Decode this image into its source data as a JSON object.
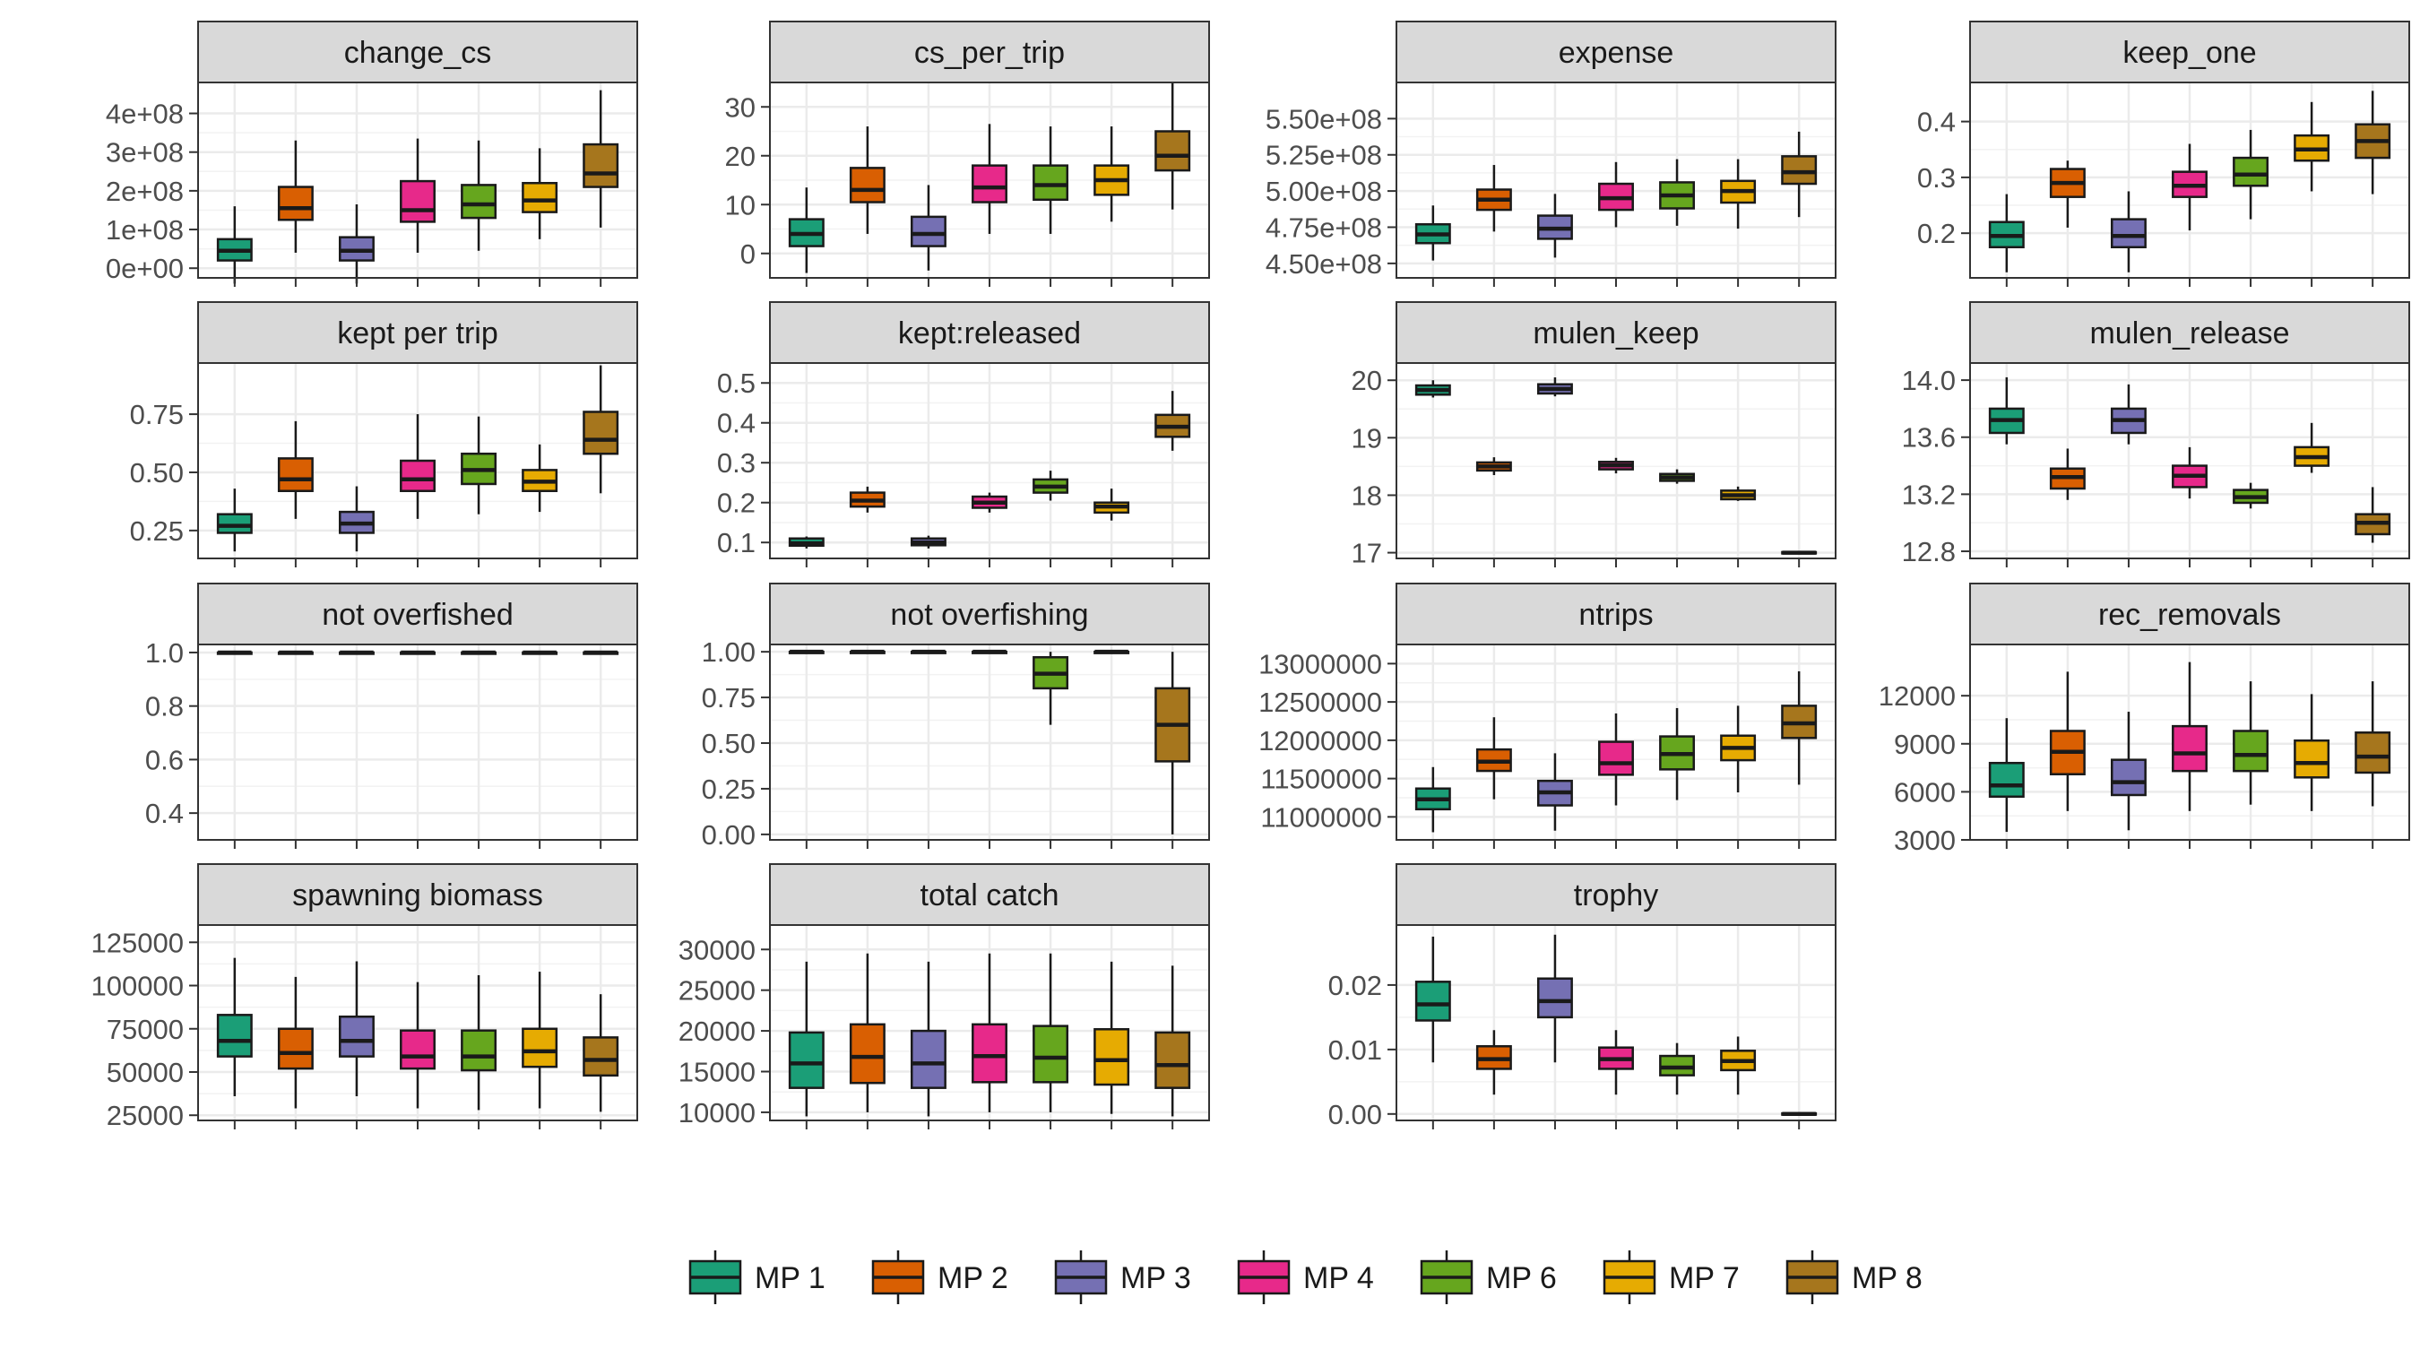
{
  "chart_data": {
    "type": "boxplot",
    "layout": "faceted grid, 4 columns, free y scales",
    "grid": true,
    "legend_position": "bottom",
    "legend": [
      {
        "label": "MP 1",
        "color": "#1b9e77"
      },
      {
        "label": "MP 2",
        "color": "#d95f02"
      },
      {
        "label": "MP 3",
        "color": "#7570b3"
      },
      {
        "label": "MP 4",
        "color": "#e7298a"
      },
      {
        "label": "MP 6",
        "color": "#66a61e"
      },
      {
        "label": "MP 7",
        "color": "#e6ab02"
      },
      {
        "label": "MP 8",
        "color": "#a6761d"
      }
    ],
    "series_order": [
      "MP 1",
      "MP 2",
      "MP 3",
      "MP 4",
      "MP 6",
      "MP 7",
      "MP 8"
    ],
    "box_fields": [
      "ymin",
      "q1",
      "median",
      "q3",
      "ymax"
    ],
    "facets": [
      {
        "title": "change_cs",
        "ylim": [
          -25000000,
          480000000
        ],
        "ticks": [
          0,
          100000000,
          200000000,
          300000000,
          400000000
        ],
        "tick_labels": [
          "0e+00",
          "1e+08",
          "2e+08",
          "3e+08",
          "4e+08"
        ],
        "boxes": [
          [
            -40000000,
            20000000,
            45000000,
            75000000,
            160000000
          ],
          [
            40000000,
            125000000,
            155000000,
            210000000,
            330000000
          ],
          [
            -40000000,
            20000000,
            45000000,
            80000000,
            165000000
          ],
          [
            40000000,
            120000000,
            150000000,
            225000000,
            335000000
          ],
          [
            45000000,
            130000000,
            165000000,
            215000000,
            330000000
          ],
          [
            75000000,
            145000000,
            175000000,
            220000000,
            310000000
          ],
          [
            105000000,
            210000000,
            245000000,
            320000000,
            460000000
          ]
        ]
      },
      {
        "title": "cs_per_trip",
        "ylim": [
          -5,
          35
        ],
        "ticks": [
          0,
          10,
          20,
          30
        ],
        "tick_labels": [
          "0",
          "10",
          "20",
          "30"
        ],
        "boxes": [
          [
            -4,
            1.5,
            4,
            7,
            13.5
          ],
          [
            4,
            10.5,
            13,
            17.5,
            26
          ],
          [
            -3.5,
            1.5,
            4,
            7.5,
            14
          ],
          [
            4,
            10.5,
            13.5,
            18,
            26.5
          ],
          [
            4,
            11,
            14,
            18,
            26
          ],
          [
            6.5,
            12,
            15,
            18,
            26
          ],
          [
            9,
            17,
            20,
            25,
            35
          ]
        ]
      },
      {
        "title": "expense",
        "ylim": [
          440000000,
          575000000
        ],
        "ticks": [
          450000000,
          475000000,
          500000000,
          525000000,
          550000000
        ],
        "tick_labels": [
          "4.50e+08",
          "4.75e+08",
          "5.00e+08",
          "5.25e+08",
          "5.50e+08"
        ],
        "boxes": [
          [
            452000000,
            464000000,
            470000000,
            477000000,
            490000000
          ],
          [
            472000000,
            487000000,
            494000000,
            501000000,
            518000000
          ],
          [
            454000000,
            467000000,
            474000000,
            483000000,
            498000000
          ],
          [
            475000000,
            487000000,
            495000000,
            505000000,
            520000000
          ],
          [
            476000000,
            488000000,
            497000000,
            506000000,
            522000000
          ],
          [
            474000000,
            492000000,
            500000000,
            507000000,
            522000000
          ],
          [
            482000000,
            505000000,
            513000000,
            524000000,
            541000000
          ]
        ]
      },
      {
        "title": "keep_one",
        "ylim": [
          0.12,
          0.47
        ],
        "ticks": [
          0.2,
          0.3,
          0.4
        ],
        "tick_labels": [
          "0.2",
          "0.3",
          "0.4"
        ],
        "boxes": [
          [
            0.13,
            0.175,
            0.195,
            0.22,
            0.27
          ],
          [
            0.21,
            0.265,
            0.29,
            0.315,
            0.33
          ],
          [
            0.13,
            0.175,
            0.195,
            0.225,
            0.275
          ],
          [
            0.205,
            0.265,
            0.285,
            0.31,
            0.36
          ],
          [
            0.225,
            0.285,
            0.305,
            0.335,
            0.385
          ],
          [
            0.275,
            0.33,
            0.35,
            0.375,
            0.435
          ],
          [
            0.27,
            0.335,
            0.365,
            0.395,
            0.455
          ]
        ]
      },
      {
        "title": "kept per trip",
        "ylim": [
          0.13,
          0.97
        ],
        "ticks": [
          0.25,
          0.5,
          0.75
        ],
        "tick_labels": [
          "0.25",
          "0.50",
          "0.75"
        ],
        "boxes": [
          [
            0.16,
            0.24,
            0.27,
            0.32,
            0.43
          ],
          [
            0.3,
            0.42,
            0.47,
            0.56,
            0.72
          ],
          [
            0.16,
            0.24,
            0.28,
            0.33,
            0.44
          ],
          [
            0.3,
            0.42,
            0.47,
            0.55,
            0.75
          ],
          [
            0.32,
            0.45,
            0.51,
            0.58,
            0.74
          ],
          [
            0.33,
            0.42,
            0.46,
            0.51,
            0.62
          ],
          [
            0.41,
            0.58,
            0.64,
            0.76,
            0.96
          ]
        ]
      },
      {
        "title": "kept:released",
        "ylim": [
          0.06,
          0.55
        ],
        "ticks": [
          0.1,
          0.2,
          0.3,
          0.4,
          0.5
        ],
        "tick_labels": [
          "0.1",
          "0.2",
          "0.3",
          "0.4",
          "0.5"
        ],
        "boxes": [
          [
            0.085,
            0.092,
            0.098,
            0.11,
            0.115
          ],
          [
            0.175,
            0.19,
            0.205,
            0.225,
            0.24
          ],
          [
            0.085,
            0.093,
            0.1,
            0.11,
            0.117
          ],
          [
            0.175,
            0.187,
            0.2,
            0.215,
            0.225
          ],
          [
            0.205,
            0.225,
            0.24,
            0.258,
            0.28
          ],
          [
            0.155,
            0.175,
            0.19,
            0.2,
            0.235
          ],
          [
            0.33,
            0.365,
            0.39,
            0.42,
            0.48
          ]
        ]
      },
      {
        "title": "mulen_keep",
        "ylim": [
          16.9,
          20.3
        ],
        "ticks": [
          17,
          18,
          19,
          20
        ],
        "tick_labels": [
          "17",
          "18",
          "19",
          "20"
        ],
        "boxes": [
          [
            19.7,
            19.75,
            19.83,
            19.91,
            20.0
          ],
          [
            18.35,
            18.43,
            18.5,
            18.57,
            18.66
          ],
          [
            19.72,
            19.77,
            19.85,
            19.93,
            20.05
          ],
          [
            18.38,
            18.45,
            18.52,
            18.58,
            18.65
          ],
          [
            18.2,
            18.25,
            18.31,
            18.37,
            18.45
          ],
          [
            17.9,
            17.93,
            18.0,
            18.08,
            18.15
          ],
          [
            16.98,
            16.99,
            17.0,
            17.01,
            17.02
          ]
        ]
      },
      {
        "title": "mulen_release",
        "ylim": [
          12.75,
          14.12
        ],
        "ticks": [
          12.8,
          13.2,
          13.6,
          14.0
        ],
        "tick_labels": [
          "12.8",
          "13.2",
          "13.6",
          "14.0"
        ],
        "boxes": [
          [
            13.55,
            13.63,
            13.72,
            13.8,
            14.02
          ],
          [
            13.16,
            13.24,
            13.32,
            13.38,
            13.52
          ],
          [
            13.55,
            13.63,
            13.72,
            13.8,
            13.97
          ],
          [
            13.17,
            13.25,
            13.33,
            13.4,
            13.53
          ],
          [
            13.1,
            13.14,
            13.18,
            13.23,
            13.28
          ],
          [
            13.35,
            13.4,
            13.46,
            13.53,
            13.7
          ],
          [
            12.86,
            12.92,
            13.0,
            13.06,
            13.25
          ]
        ]
      },
      {
        "title": "not overfished",
        "ylim": [
          0.3,
          1.03
        ],
        "ticks": [
          0.4,
          0.6,
          0.8,
          1.0
        ],
        "tick_labels": [
          "0.4",
          "0.6",
          "0.8",
          "1.0"
        ],
        "boxes": [
          [
            1.0,
            1.0,
            1.0,
            1.0,
            1.0
          ],
          [
            1.0,
            1.0,
            1.0,
            1.0,
            1.0
          ],
          [
            1.0,
            1.0,
            1.0,
            1.0,
            1.0
          ],
          [
            1.0,
            1.0,
            1.0,
            1.0,
            1.0
          ],
          [
            1.0,
            1.0,
            1.0,
            1.0,
            1.0
          ],
          [
            1.0,
            1.0,
            1.0,
            1.0,
            1.0
          ],
          [
            1.0,
            1.0,
            1.0,
            1.0,
            1.0
          ]
        ]
      },
      {
        "title": "not overfishing",
        "ylim": [
          -0.03,
          1.04
        ],
        "ticks": [
          0.0,
          0.25,
          0.5,
          0.75,
          1.0
        ],
        "tick_labels": [
          "0.00",
          "0.25",
          "0.50",
          "0.75",
          "1.00"
        ],
        "boxes": [
          [
            1.0,
            1.0,
            1.0,
            1.0,
            1.0
          ],
          [
            1.0,
            1.0,
            1.0,
            1.0,
            1.0
          ],
          [
            1.0,
            1.0,
            1.0,
            1.0,
            1.0
          ],
          [
            1.0,
            1.0,
            1.0,
            1.0,
            1.0
          ],
          [
            0.6,
            0.8,
            0.88,
            0.97,
            1.0
          ],
          [
            1.0,
            1.0,
            1.0,
            1.0,
            1.0
          ],
          [
            0.0,
            0.4,
            0.6,
            0.8,
            1.0
          ]
        ]
      },
      {
        "title": "ntrips",
        "ylim": [
          10700000,
          13250000
        ],
        "ticks": [
          11000000,
          11500000,
          12000000,
          12500000,
          13000000
        ],
        "tick_labels": [
          "11000000",
          "11500000",
          "12000000",
          "12500000",
          "13000000"
        ],
        "boxes": [
          [
            10800000,
            11100000,
            11230000,
            11370000,
            11650000
          ],
          [
            11230000,
            11600000,
            11720000,
            11880000,
            12300000
          ],
          [
            10820000,
            11150000,
            11320000,
            11470000,
            11830000
          ],
          [
            11150000,
            11550000,
            11700000,
            11980000,
            12350000
          ],
          [
            11220000,
            11620000,
            11820000,
            12050000,
            12420000
          ],
          [
            11320000,
            11740000,
            11900000,
            12060000,
            12450000
          ],
          [
            11420000,
            12030000,
            12220000,
            12450000,
            12900000
          ]
        ]
      },
      {
        "title": "rec_removals",
        "ylim": [
          3000,
          15200
        ],
        "ticks": [
          3000,
          6000,
          9000,
          12000
        ],
        "tick_labels": [
          "3000",
          "6000",
          "9000",
          "12000"
        ],
        "boxes": [
          [
            3500,
            5700,
            6400,
            7800,
            10600
          ],
          [
            4800,
            7100,
            8500,
            9800,
            13500
          ],
          [
            3600,
            5800,
            6600,
            8000,
            11000
          ],
          [
            4800,
            7300,
            8400,
            10100,
            14100
          ],
          [
            5200,
            7300,
            8300,
            9800,
            12900
          ],
          [
            4800,
            6900,
            7800,
            9200,
            12100
          ],
          [
            5100,
            7200,
            8200,
            9700,
            12900
          ]
        ]
      },
      {
        "title": "spawning biomass",
        "ylim": [
          22000,
          135000
        ],
        "ticks": [
          25000,
          50000,
          75000,
          100000,
          125000
        ],
        "tick_labels": [
          "25000",
          "50000",
          "75000",
          "100000",
          "125000"
        ],
        "boxes": [
          [
            36000,
            59000,
            68000,
            83000,
            116000
          ],
          [
            29000,
            52000,
            61000,
            75000,
            105000
          ],
          [
            36000,
            59000,
            68000,
            82000,
            114000
          ],
          [
            29000,
            52000,
            59000,
            74000,
            102000
          ],
          [
            28000,
            51000,
            59000,
            74000,
            106000
          ],
          [
            29000,
            53000,
            62000,
            75000,
            108000
          ],
          [
            27000,
            48000,
            57000,
            70000,
            95000
          ]
        ]
      },
      {
        "title": "total catch",
        "ylim": [
          9000,
          33000
        ],
        "ticks": [
          10000,
          15000,
          20000,
          25000,
          30000
        ],
        "tick_labels": [
          "10000",
          "15000",
          "20000",
          "25000",
          "30000"
        ],
        "boxes": [
          [
            9500,
            13000,
            16000,
            19800,
            28500
          ],
          [
            10000,
            13600,
            16800,
            20800,
            29500
          ],
          [
            9500,
            13000,
            16000,
            20000,
            28500
          ],
          [
            10000,
            13700,
            16900,
            20800,
            29500
          ],
          [
            10000,
            13700,
            16700,
            20600,
            29500
          ],
          [
            9800,
            13400,
            16400,
            20200,
            28500
          ],
          [
            9500,
            13000,
            15800,
            19800,
            28000
          ]
        ]
      },
      {
        "title": "trophy",
        "ylim": [
          -0.001,
          0.0293
        ],
        "ticks": [
          0.0,
          0.01,
          0.02
        ],
        "tick_labels": [
          "0.00",
          "0.01",
          "0.02"
        ],
        "boxes": [
          [
            0.008,
            0.0145,
            0.017,
            0.0205,
            0.0275
          ],
          [
            0.003,
            0.007,
            0.0085,
            0.0105,
            0.013
          ],
          [
            0.008,
            0.015,
            0.0175,
            0.021,
            0.0278
          ],
          [
            0.003,
            0.007,
            0.0085,
            0.0103,
            0.013
          ],
          [
            0.003,
            0.006,
            0.0072,
            0.009,
            0.011
          ],
          [
            0.003,
            0.0068,
            0.0082,
            0.0098,
            0.012
          ],
          [
            0.0,
            0.0,
            0.0,
            0.0001,
            0.0002
          ]
        ]
      }
    ]
  }
}
